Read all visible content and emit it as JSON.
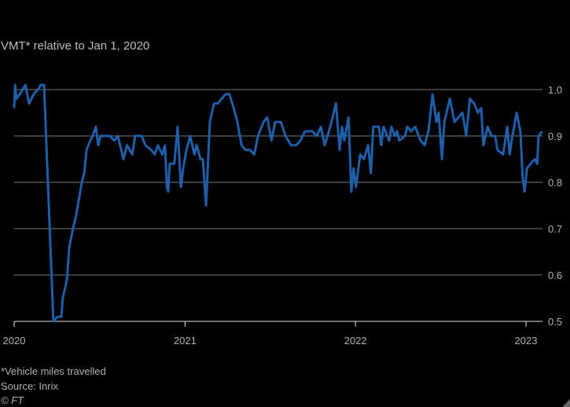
{
  "chart_data": {
    "type": "line",
    "title": "",
    "subtitle": "VMT* relative to Jan 1, 2020",
    "xlabel": "",
    "ylabel": "",
    "ylim": [
      0.5,
      1.0
    ],
    "yticks": [
      "0.5",
      "0.6",
      "0.7",
      "0.8",
      "0.9",
      "1.0"
    ],
    "xticks": [
      "2020",
      "2021",
      "2022",
      "2023"
    ],
    "xlim": [
      "2020-01-01",
      "2023-02-10"
    ],
    "grid": true,
    "line_color": "#1f5ea8",
    "series": [
      {
        "points": [
          [
            "2020-01-01",
            0.96
          ],
          [
            "2020-01-03",
            1.01
          ],
          [
            "2020-01-06",
            0.98
          ],
          [
            "2020-01-13",
            0.99
          ],
          [
            "2020-01-25",
            1.01
          ],
          [
            "2020-02-02",
            0.97
          ],
          [
            "2020-02-12",
            0.99
          ],
          [
            "2020-02-21",
            1.0
          ],
          [
            "2020-02-27",
            1.01
          ],
          [
            "2020-03-05",
            1.01
          ],
          [
            "2020-03-25",
            0.5
          ],
          [
            "2020-04-03",
            0.51
          ],
          [
            "2020-04-11",
            0.51
          ],
          [
            "2020-04-14",
            0.55
          ],
          [
            "2020-04-23",
            0.59
          ],
          [
            "2020-04-28",
            0.66
          ],
          [
            "2020-05-06",
            0.7
          ],
          [
            "2020-05-13",
            0.73
          ],
          [
            "2020-05-18",
            0.76
          ],
          [
            "2020-05-25",
            0.8
          ],
          [
            "2020-05-30",
            0.82
          ],
          [
            "2020-06-04",
            0.87
          ],
          [
            "2020-06-12",
            0.89
          ],
          [
            "2020-06-17",
            0.9
          ],
          [
            "2020-06-24",
            0.92
          ],
          [
            "2020-06-29",
            0.88
          ],
          [
            "2020-07-04",
            0.9
          ],
          [
            "2020-07-14",
            0.9
          ],
          [
            "2020-07-24",
            0.9
          ],
          [
            "2020-08-02",
            0.89
          ],
          [
            "2020-08-10",
            0.9
          ],
          [
            "2020-08-22",
            0.85
          ],
          [
            "2020-08-30",
            0.88
          ],
          [
            "2020-09-10",
            0.86
          ],
          [
            "2020-09-16",
            0.9
          ],
          [
            "2020-09-30",
            0.9
          ],
          [
            "2020-10-08",
            0.88
          ],
          [
            "2020-10-20",
            0.87
          ],
          [
            "2020-10-28",
            0.86
          ],
          [
            "2020-11-04",
            0.88
          ],
          [
            "2020-11-13",
            0.86
          ],
          [
            "2020-11-19",
            0.88
          ],
          [
            "2020-11-23",
            0.79
          ],
          [
            "2020-11-26",
            0.78
          ],
          [
            "2020-11-29",
            0.84
          ],
          [
            "2020-12-09",
            0.84
          ],
          [
            "2020-12-16",
            0.92
          ],
          [
            "2020-12-23",
            0.79
          ],
          [
            "2020-12-28",
            0.83
          ],
          [
            "2021-01-04",
            0.87
          ],
          [
            "2021-01-12",
            0.9
          ],
          [
            "2021-01-21",
            0.86
          ],
          [
            "2021-01-26",
            0.88
          ],
          [
            "2021-02-03",
            0.85
          ],
          [
            "2021-02-08",
            0.85
          ],
          [
            "2021-02-15",
            0.75
          ],
          [
            "2021-02-23",
            0.93
          ],
          [
            "2021-03-04",
            0.97
          ],
          [
            "2021-03-12",
            0.97
          ],
          [
            "2021-03-20",
            0.98
          ],
          [
            "2021-03-29",
            0.99
          ],
          [
            "2021-04-06",
            0.99
          ],
          [
            "2021-04-15",
            0.96
          ],
          [
            "2021-04-23",
            0.93
          ],
          [
            "2021-05-02",
            0.88
          ],
          [
            "2021-05-10",
            0.87
          ],
          [
            "2021-05-20",
            0.87
          ],
          [
            "2021-05-29",
            0.86
          ],
          [
            "2021-06-06",
            0.9
          ],
          [
            "2021-06-18",
            0.93
          ],
          [
            "2021-06-26",
            0.94
          ],
          [
            "2021-07-05",
            0.89
          ],
          [
            "2021-07-13",
            0.93
          ],
          [
            "2021-07-25",
            0.93
          ],
          [
            "2021-08-04",
            0.9
          ],
          [
            "2021-08-16",
            0.88
          ],
          [
            "2021-08-27",
            0.88
          ],
          [
            "2021-09-05",
            0.89
          ],
          [
            "2021-09-15",
            0.91
          ],
          [
            "2021-09-30",
            0.91
          ],
          [
            "2021-10-10",
            0.9
          ],
          [
            "2021-10-19",
            0.92
          ],
          [
            "2021-10-27",
            0.88
          ],
          [
            "2021-11-08",
            0.92
          ],
          [
            "2021-11-20",
            0.97
          ],
          [
            "2021-11-28",
            0.87
          ],
          [
            "2021-12-03",
            0.92
          ],
          [
            "2021-12-08",
            0.89
          ],
          [
            "2021-12-17",
            0.94
          ],
          [
            "2021-12-23",
            0.78
          ],
          [
            "2021-12-28",
            0.83
          ],
          [
            "2022-01-02",
            0.79
          ],
          [
            "2022-01-11",
            0.86
          ],
          [
            "2022-01-19",
            0.85
          ],
          [
            "2022-01-28",
            0.88
          ],
          [
            "2022-02-03",
            0.82
          ],
          [
            "2022-02-08",
            0.92
          ],
          [
            "2022-02-20",
            0.92
          ],
          [
            "2022-02-25",
            0.88
          ],
          [
            "2022-03-02",
            0.92
          ],
          [
            "2022-03-14",
            0.89
          ],
          [
            "2022-03-19",
            0.92
          ],
          [
            "2022-03-26",
            0.9
          ],
          [
            "2022-03-31",
            0.91
          ],
          [
            "2022-04-05",
            0.89
          ],
          [
            "2022-04-17",
            0.9
          ],
          [
            "2022-04-22",
            0.92
          ],
          [
            "2022-04-30",
            0.91
          ],
          [
            "2022-05-09",
            0.92
          ],
          [
            "2022-05-20",
            0.89
          ],
          [
            "2022-05-29",
            0.88
          ],
          [
            "2022-06-06",
            0.91
          ],
          [
            "2022-06-15",
            0.99
          ],
          [
            "2022-06-23",
            0.93
          ],
          [
            "2022-06-28",
            0.95
          ],
          [
            "2022-07-05",
            0.85
          ],
          [
            "2022-07-10",
            0.93
          ],
          [
            "2022-07-22",
            0.98
          ],
          [
            "2022-08-01",
            0.93
          ],
          [
            "2022-08-18",
            0.95
          ],
          [
            "2022-08-26",
            0.9
          ],
          [
            "2022-09-03",
            0.98
          ],
          [
            "2022-09-12",
            0.97
          ],
          [
            "2022-09-20",
            0.95
          ],
          [
            "2022-09-27",
            0.96
          ],
          [
            "2022-10-02",
            0.88
          ],
          [
            "2022-10-11",
            0.92
          ],
          [
            "2022-10-19",
            0.9
          ],
          [
            "2022-10-27",
            0.9
          ],
          [
            "2022-11-01",
            0.87
          ],
          [
            "2022-11-13",
            0.86
          ],
          [
            "2022-11-22",
            0.92
          ],
          [
            "2022-11-27",
            0.86
          ],
          [
            "2022-12-03",
            0.9
          ],
          [
            "2022-12-12",
            0.95
          ],
          [
            "2022-12-20",
            0.91
          ],
          [
            "2022-12-25",
            0.81
          ],
          [
            "2022-12-29",
            0.78
          ],
          [
            "2023-01-03",
            0.83
          ],
          [
            "2023-01-11",
            0.84
          ],
          [
            "2023-01-20",
            0.85
          ],
          [
            "2023-01-25",
            0.84
          ],
          [
            "2023-01-28",
            0.9
          ],
          [
            "2023-02-05",
            0.91
          ]
        ]
      }
    ]
  },
  "footnote": "*Vehicle miles travelled",
  "source": "Source: Inrix",
  "credit": "© FT"
}
